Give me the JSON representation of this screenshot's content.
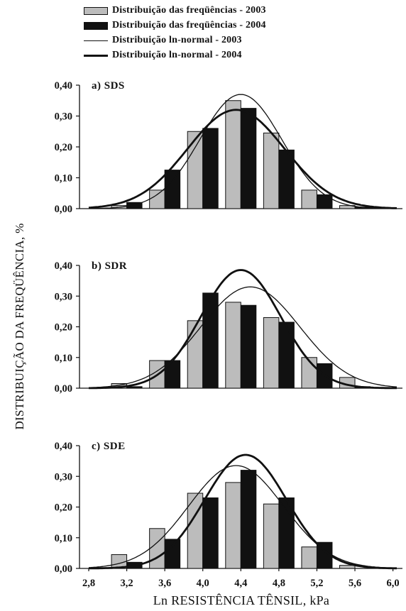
{
  "legend": {
    "items": [
      {
        "label": "Distribuição das freqüências - 2003",
        "kind": "bar",
        "color": "#bcbcbc"
      },
      {
        "label": "Distribuição das freqüências - 2004",
        "kind": "bar",
        "color": "#111111"
      },
      {
        "label": "Distribuição ln-normal - 2003",
        "kind": "line-thin",
        "color": "#111111"
      },
      {
        "label": "Distribuição ln-normal - 2004",
        "kind": "line-thick",
        "color": "#111111"
      }
    ]
  },
  "ylabel": "DISTRIBUIÇÃO DA FREQÜÊNCIA, %",
  "xlabel": "Ln RESISTÊNCIA TÊNSIL, kPa",
  "x_ticks": [
    "2,8",
    "3,2",
    "3,6",
    "4,0",
    "4,4",
    "4,8",
    "5,2",
    "5,6",
    "6,0"
  ],
  "y_ticks": [
    "0,00",
    "0,10",
    "0,20",
    "0,30",
    "0,40"
  ],
  "chart_data": [
    {
      "type": "bar",
      "title": "a) SDS",
      "xlabel": "Ln RESISTÊNCIA TÊNSIL, kPa",
      "ylabel": "DISTRIBUIÇÃO DA FREQÜÊNCIA, %",
      "ylim": [
        0,
        0.4
      ],
      "xlim": [
        2.8,
        6.0
      ],
      "categories": [
        3.2,
        3.6,
        4.0,
        4.4,
        4.8,
        5.2,
        5.6
      ],
      "series": [
        {
          "name": "Distribuição das freqüências - 2003",
          "values": [
            0.01,
            0.06,
            0.25,
            0.35,
            0.245,
            0.06,
            0.01
          ]
        },
        {
          "name": "Distribuição das freqüências - 2004",
          "values": [
            0.02,
            0.125,
            0.26,
            0.325,
            0.19,
            0.045,
            0.005
          ]
        }
      ],
      "curves": [
        {
          "name": "Distribuição ln-normal - 2003",
          "mean": 4.4,
          "sd": 0.43,
          "peak": 0.37
        },
        {
          "name": "Distribuição ln-normal - 2004",
          "mean": 4.35,
          "sd": 0.51,
          "peak": 0.32
        }
      ]
    },
    {
      "type": "bar",
      "title": "b) SDR",
      "xlabel": "Ln RESISTÊNCIA TÊNSIL, kPa",
      "ylabel": "DISTRIBUIÇÃO DA FREQÜÊNCIA, %",
      "ylim": [
        0,
        0.4
      ],
      "xlim": [
        2.8,
        6.0
      ],
      "categories": [
        3.2,
        3.6,
        4.0,
        4.4,
        4.8,
        5.2,
        5.6
      ],
      "series": [
        {
          "name": "Distribuição das freqüências - 2003",
          "values": [
            0.015,
            0.09,
            0.22,
            0.28,
            0.23,
            0.1,
            0.035
          ]
        },
        {
          "name": "Distribuição das freqüências - 2004",
          "values": [
            0.005,
            0.09,
            0.31,
            0.27,
            0.215,
            0.08,
            0.005
          ]
        }
      ],
      "curves": [
        {
          "name": "Distribuição ln-normal - 2003",
          "mean": 4.5,
          "sd": 0.52,
          "peak": 0.33
        },
        {
          "name": "Distribuição ln-normal - 2004",
          "mean": 4.4,
          "sd": 0.42,
          "peak": 0.385
        }
      ]
    },
    {
      "type": "bar",
      "title": "c) SDE",
      "xlabel": "Ln RESISTÊNCIA TÊNSIL, kPa",
      "ylabel": "DISTRIBUIÇÃO DA FREQÜÊNCIA, %",
      "ylim": [
        0,
        0.4
      ],
      "xlim": [
        2.8,
        6.0
      ],
      "categories": [
        3.2,
        3.6,
        4.0,
        4.4,
        4.8,
        5.2,
        5.6
      ],
      "series": [
        {
          "name": "Distribuição das freqüências - 2003",
          "values": [
            0.045,
            0.13,
            0.245,
            0.28,
            0.21,
            0.07,
            0.01
          ]
        },
        {
          "name": "Distribuição das freqüências - 2004",
          "values": [
            0.02,
            0.095,
            0.23,
            0.32,
            0.23,
            0.085,
            0.0
          ]
        }
      ],
      "curves": [
        {
          "name": "Distribuição ln-normal - 2003",
          "mean": 4.35,
          "sd": 0.5,
          "peak": 0.335
        },
        {
          "name": "Distribuição ln-normal - 2004",
          "mean": 4.45,
          "sd": 0.43,
          "peak": 0.37
        }
      ]
    }
  ]
}
